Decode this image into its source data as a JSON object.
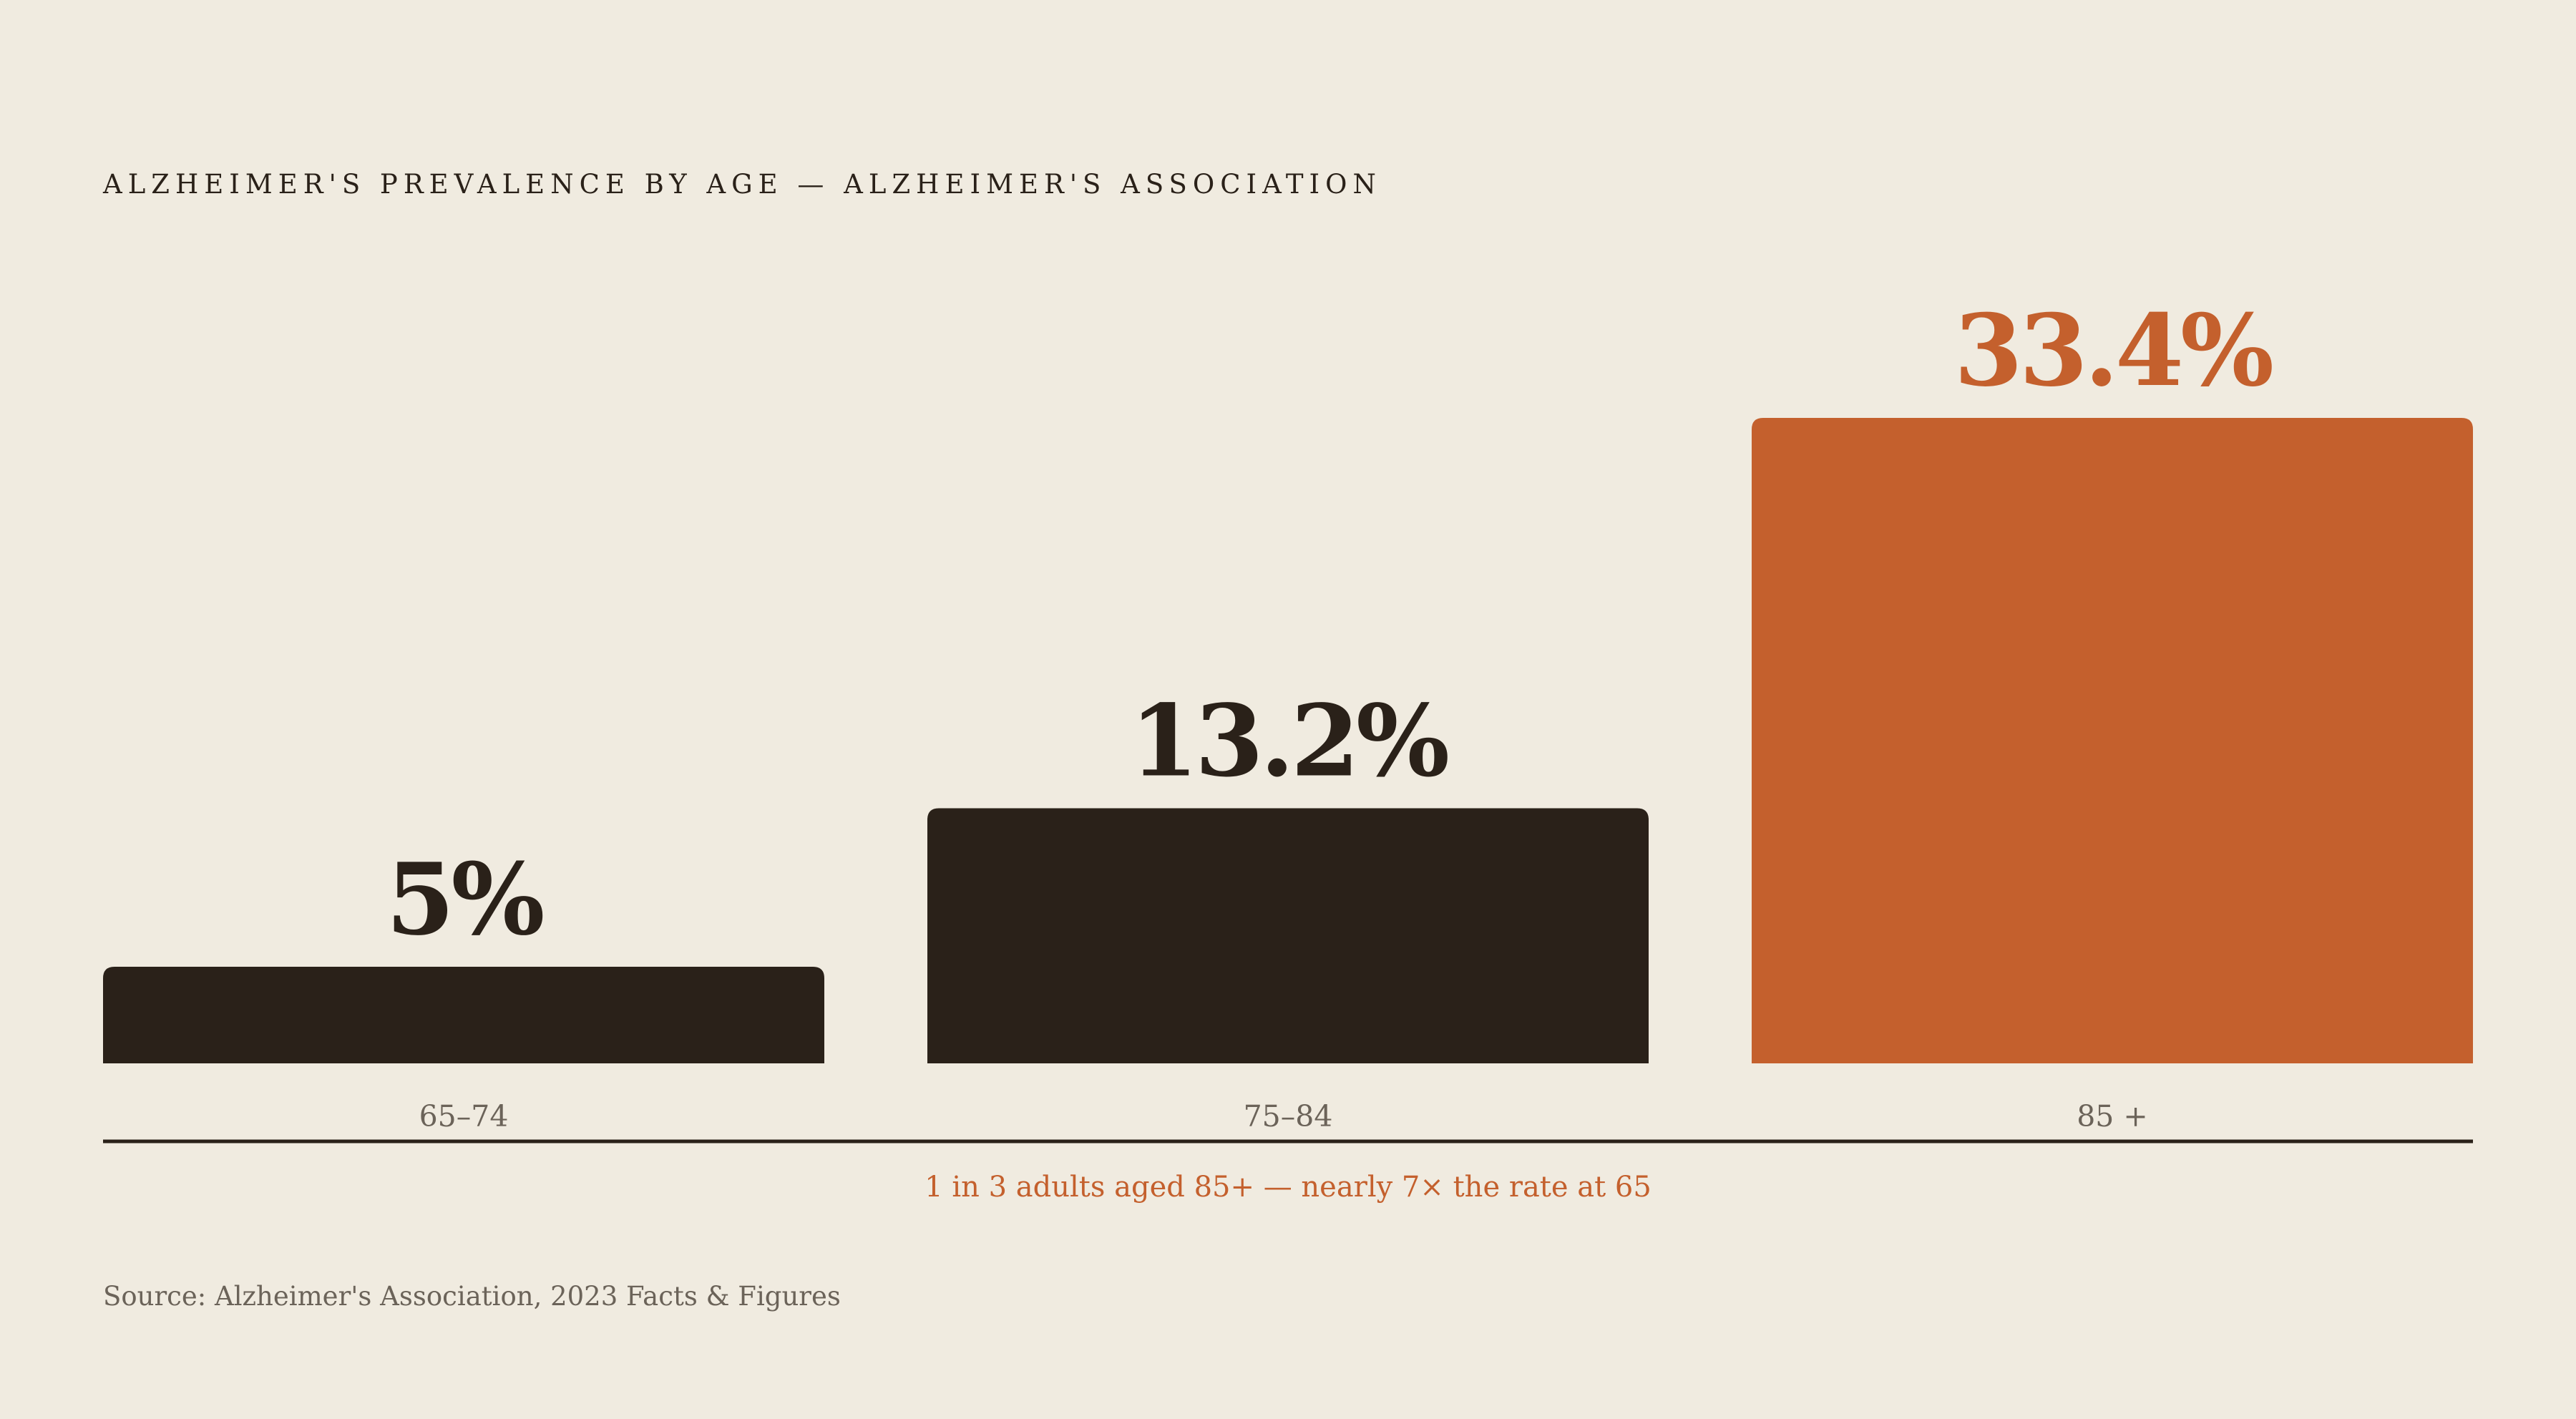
{
  "chart_data": {
    "type": "bar",
    "title": "ALZHEIMER'S PREVALENCE BY AGE — ALZHEIMER'S ASSOCIATION",
    "categories": [
      "65–74",
      "75–84",
      "85 +"
    ],
    "values": [
      5,
      13.2,
      33.4
    ],
    "value_labels": [
      "5%",
      "13.2%",
      "33.4%"
    ],
    "unit": "%",
    "xlabel": "",
    "ylabel": "",
    "ylim": [
      0,
      33.4
    ],
    "grid": false,
    "highlight_index": 2,
    "colors": {
      "default_bar": "#2A2119",
      "highlight_bar": "#C4602D",
      "background": "#F0EBE0",
      "axis": "#2A2119",
      "muted_text": "#6B6359"
    },
    "annotation": "1 in 3 adults aged 85+ — nearly 7× the rate at 65",
    "source": "Source: Alzheimer's Association, 2023 Facts & Figures"
  }
}
